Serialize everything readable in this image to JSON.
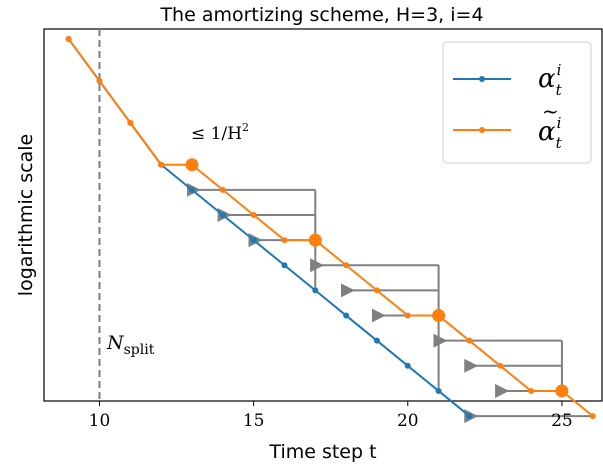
{
  "chart_data": {
    "type": "line",
    "title": "The amortizing scheme, H=3, i=4",
    "xlabel": "Time step t",
    "ylabel": "logarithmic scale",
    "xlim": [
      8.2,
      26.3
    ],
    "ylim": [
      -21.6,
      0.6
    ],
    "xticks": [
      10,
      15,
      20,
      25
    ],
    "yscale": "log",
    "grid": false,
    "legend_position": "top-right",
    "series": [
      {
        "name": "α_t^i",
        "color": "#1f77b4",
        "x": [
          9,
          10,
          11,
          12,
          13,
          14,
          15,
          16,
          17,
          18,
          19,
          20,
          21,
          22
        ],
        "y": [
          0,
          -2.5,
          -5,
          -7.5,
          -9,
          -10.5,
          -12,
          -13.5,
          -15,
          -16.5,
          -18,
          -19.5,
          -21,
          -22.5
        ]
      },
      {
        "name": "α̃_t^i",
        "color": "#ff7f0e",
        "x": [
          9,
          10,
          11,
          12,
          13,
          14,
          15,
          16,
          17,
          18,
          19,
          20,
          21,
          22,
          23,
          24,
          25,
          26
        ],
        "y": [
          0,
          -2.5,
          -5,
          -7.5,
          -7.5,
          -9,
          -10.5,
          -12,
          -12,
          -13.5,
          -15,
          -16.5,
          -16.5,
          -18,
          -19.5,
          -21,
          -21,
          -22.5
        ],
        "highlight_x": [
          13,
          17,
          21,
          25
        ]
      }
    ],
    "vline": {
      "x": 10,
      "label": "N",
      "label_sub": "split",
      "style": "dashed",
      "color": "#7f7f7f"
    },
    "annotations": [
      {
        "text": "≤ 1/H",
        "sup": "2",
        "x": 13,
        "y": -7.5
      }
    ],
    "shift_arrows": {
      "color": "#808080",
      "groups": [
        {
          "from_x": 17,
          "targets": [
            [
              13,
              -9
            ],
            [
              14,
              -10.5
            ],
            [
              15,
              -12
            ]
          ]
        },
        {
          "from_x": 21,
          "targets": [
            [
              17,
              -13.5
            ],
            [
              18,
              -15
            ],
            [
              19,
              -16.5
            ]
          ]
        },
        {
          "from_x": 25,
          "targets": [
            [
              21,
              -18
            ],
            [
              22,
              -19.5
            ],
            [
              23,
              -21
            ]
          ]
        },
        {
          "from_x": 26,
          "targets": [
            [
              22,
              -22.5
            ]
          ]
        }
      ]
    }
  }
}
